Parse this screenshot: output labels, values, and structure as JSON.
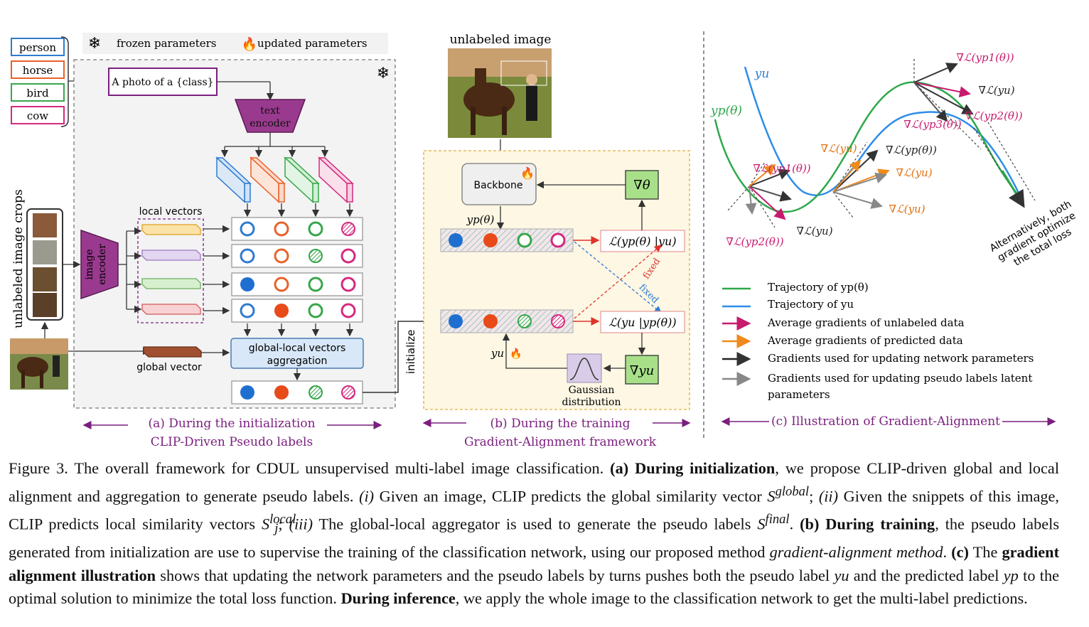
{
  "figure": {
    "legend_top": {
      "frozen": "frozen parameters",
      "updated": "updated parameters"
    },
    "classes": [
      "person",
      "horse",
      "bird",
      "cow"
    ],
    "class_colors": [
      "#2f7bd0",
      "#e8622a",
      "#37a64a",
      "#d42a7f"
    ],
    "prompt": "A photo of a {class}",
    "text_encoder": [
      "text",
      "encoder"
    ],
    "image_encoder": [
      "image",
      "encoder"
    ],
    "local_vectors": "local vectors",
    "global_vector": "global vector",
    "aggregation": [
      "global-local vectors",
      "aggregation"
    ],
    "crops_label": "unlabeled image crops",
    "initialize": "initialize",
    "unlabeled_image": "unlabeled image",
    "backbone": "Backbone",
    "grad_theta": "∇θ",
    "grad_yu": "∇yu",
    "yp_theta": "yp(θ)",
    "yu": "yu",
    "loss1": "ℒ(yp(θ) |yu)",
    "loss2": "ℒ(yu |yp(θ))",
    "fixed": "fixed",
    "gaussian": [
      "Gaussian",
      "distribution"
    ],
    "panel_a": [
      "(a) During the initialization",
      "CLIP-Driven Pseudo labels"
    ],
    "panel_b": [
      "(b) During the training",
      "Gradient-Alignment framework"
    ],
    "panel_c": "(c) Illustration of Gradient-Alignment",
    "grad_c": {
      "yu": "yu",
      "yp": "yp(θ)",
      "l_yp1_top": "∇ℒ(yp1(θ))",
      "l_yu_top": "∇ℒ(yu)",
      "l_yp2_top": "∇ℒ(yp2(θ))",
      "l_yp3": "∇ℒ(yp3(θ))",
      "l_yu_mid": "∇ℒ(yu)",
      "l_yp_mid": "∇ℒ(yp(θ))",
      "l_yp1_mid": "∇ℒ(yp1(θ))",
      "l_yu_right1": "∇ℒ(yu)",
      "l_yu_right2": "∇ℒ(yu)",
      "l_yp2_low": "∇ℒ(yp2(θ))",
      "l_yu_low": "∇ℒ(yu)",
      "alt_text": [
        "Alternatively, both",
        "gradient optimize",
        "the total loss"
      ]
    },
    "legend_c": [
      "Trajectory of yp(θ)",
      "Trajectory of yu",
      "Average gradients of unlabeled data",
      "Average gradients of predicted data",
      "Gradients used for updating network parameters",
      "Gradients used for updating pseudo labels latent",
      "parameters"
    ]
  },
  "caption": {
    "lead": "Figure 3. The overall framework for CDUL unsupervised multi-label image classification.",
    "a_bold": "(a) During initialization",
    "a_text": ", we propose CLIP-driven global and local alignment and aggregation to generate pseudo labels.",
    "i_mark": "(i)",
    "i_text": " Given an image, CLIP predicts the global similarity vector",
    "s_global": "S",
    "s_global_sup": "global",
    "ii_mark": "(ii)",
    "ii_text": " Given the snippets of this image, CLIP predicts local similarity vectors",
    "s_local": "S",
    "s_local_sup": "local",
    "s_local_sub": "j",
    "iii_mark": "(iii)",
    "iii_text": " The global-local aggregator is used to generate the pseudo labels",
    "s_final": "S",
    "s_final_sup": "final",
    "b_bold": "(b) During training",
    "b_text": ", the pseudo labels generated from initialization are use to supervise the training of the classification network, using our proposed method",
    "b_method": "gradient-alignment method",
    "c_bold1": "(c)",
    "c_the": " The ",
    "c_bold2": "gradient alignment illustration",
    "c_text": " shows that updating the network parameters and the pseudo labels by turns pushes both the pseudo label",
    "yu": "yu",
    "c_text2": " and the predicted label",
    "yp": "yp",
    "c_text3": " to the optimal solution to minimize the total loss function.",
    "inf_bold": "During inference",
    "inf_text": ", we apply the whole image to the classification network to get the multi-label predictions."
  }
}
